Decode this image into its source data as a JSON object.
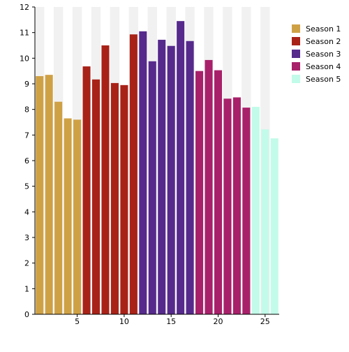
{
  "chart_data": {
    "type": "bar",
    "title": "",
    "xlabel": "",
    "ylabel": "",
    "ylim": [
      0,
      12
    ],
    "xlim": [
      0.5,
      26.5
    ],
    "yticks": [
      0,
      1,
      2,
      3,
      4,
      5,
      6,
      7,
      8,
      9,
      10,
      11,
      12
    ],
    "xticks": [
      5,
      10,
      15,
      20,
      25
    ],
    "grid": "alternating vertical bands",
    "legend_position": "top-right",
    "series": [
      {
        "name": "Season 1",
        "color": "#cfa145",
        "x": [
          1,
          2,
          3,
          4,
          5
        ],
        "values": [
          9.3,
          9.35,
          8.3,
          7.65,
          7.6
        ]
      },
      {
        "name": "Season 2",
        "color": "#a82218",
        "x": [
          6,
          7,
          8,
          9,
          10,
          11
        ],
        "values": [
          9.68,
          9.17,
          10.5,
          9.03,
          8.95,
          10.93
        ]
      },
      {
        "name": "Season 3",
        "color": "#562a8c",
        "x": [
          12,
          13,
          14,
          15,
          16,
          17
        ],
        "values": [
          11.05,
          9.88,
          10.72,
          10.48,
          11.45,
          10.67
        ]
      },
      {
        "name": "Season 4",
        "color": "#a8206a",
        "x": [
          18,
          19,
          20,
          21,
          22,
          23
        ],
        "values": [
          9.5,
          9.93,
          9.53,
          8.42,
          8.47,
          8.07
        ]
      },
      {
        "name": "Season 5",
        "color": "#c2fbe9",
        "x": [
          24,
          25,
          26
        ],
        "values": [
          8.1,
          7.22,
          6.87
        ]
      }
    ]
  }
}
